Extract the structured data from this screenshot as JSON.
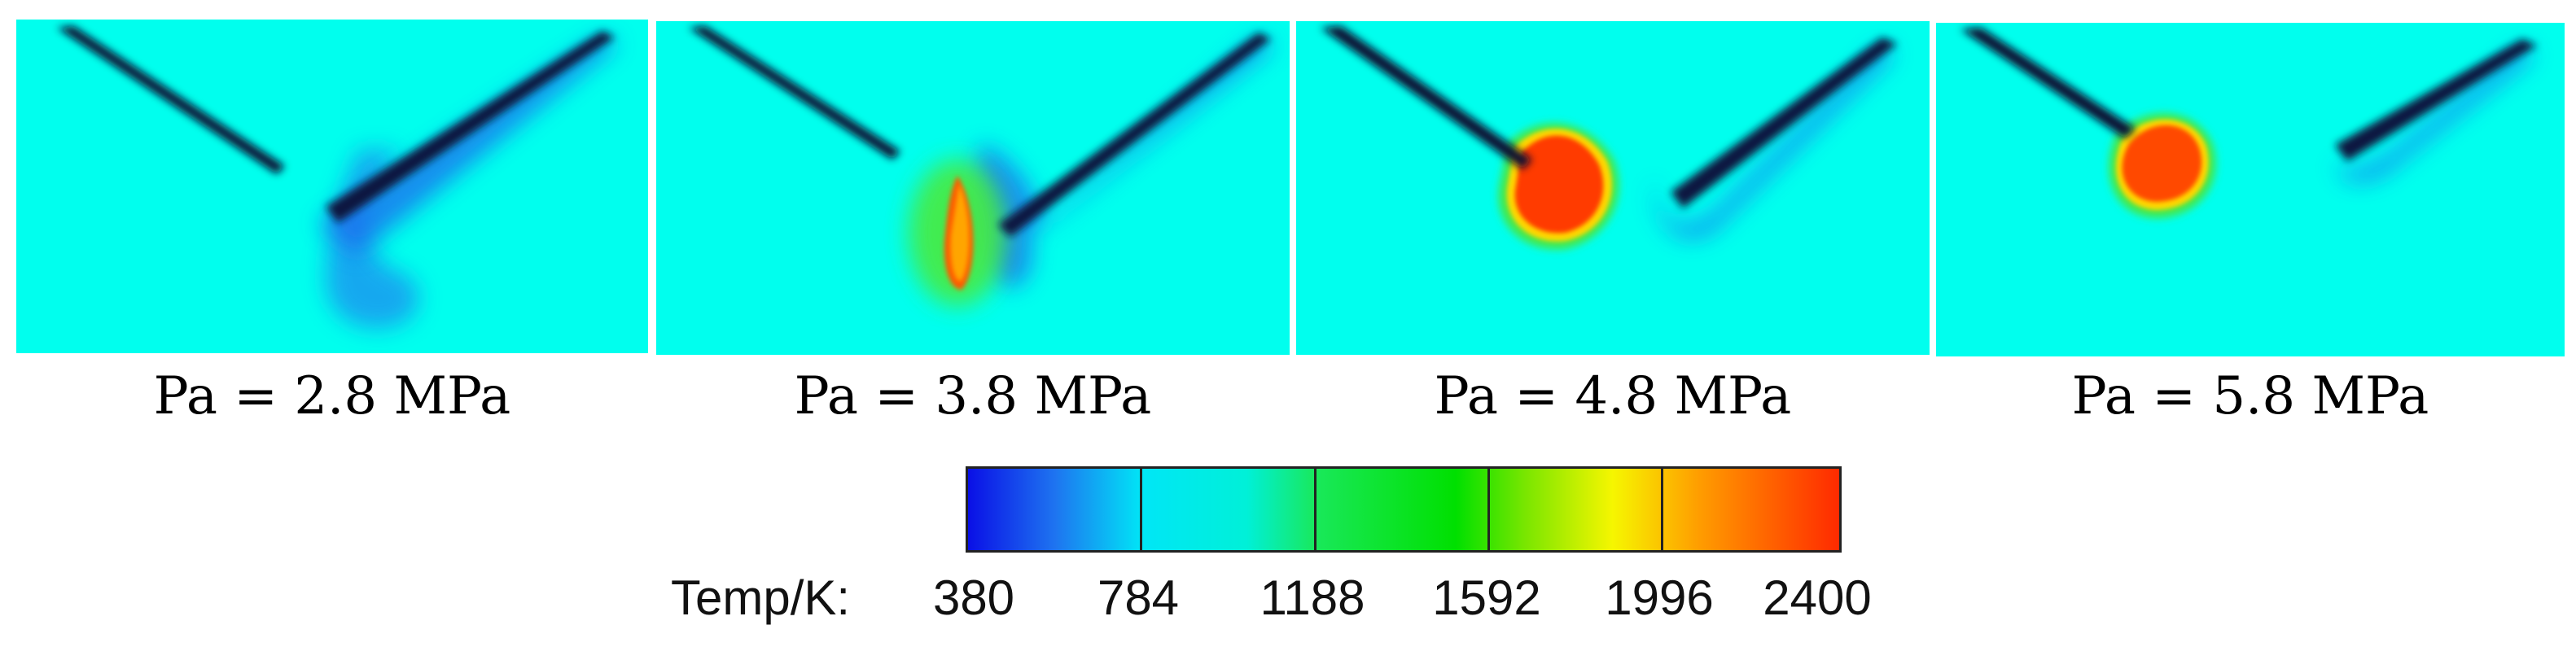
{
  "panels": [
    {
      "caption": "Pa = 2.8 MPa"
    },
    {
      "caption": "Pa = 3.8 MPa"
    },
    {
      "caption": "Pa = 4.8 MPa"
    },
    {
      "caption": "Pa = 5.8 MPa"
    }
  ],
  "colorbar": {
    "title": "Temp/K:",
    "ticks": [
      "380",
      "784",
      "1188",
      "1592",
      "1996",
      "2400"
    ],
    "min": 380,
    "max": 2400,
    "colors": {
      "background": "#00ffee",
      "cold": "#1e74f0",
      "hot_core": "#ff3a00",
      "hot_edge": "#ffd800"
    }
  }
}
